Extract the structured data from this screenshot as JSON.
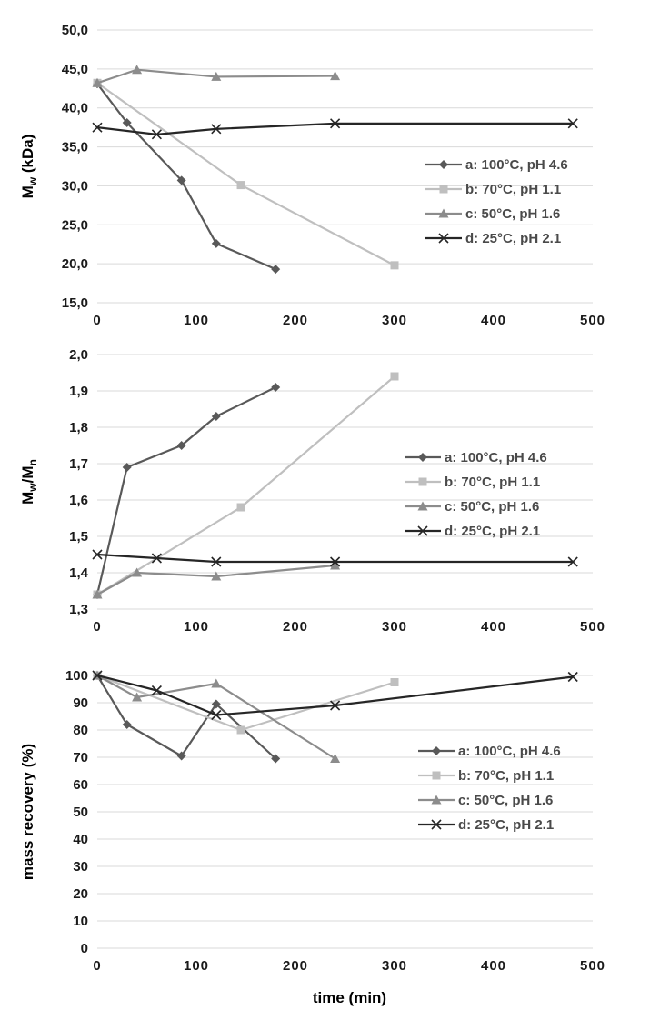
{
  "chart_data": [
    {
      "type": "line",
      "title": "",
      "xlabel": "",
      "ylabel_main": "M",
      "ylabel_sub": "w",
      "ylabel_tail": " (kDa)",
      "xlim": [
        0,
        500
      ],
      "ylim": [
        15,
        50
      ],
      "xticks": [
        0,
        100,
        200,
        300,
        400,
        500
      ],
      "xtick_labels": [
        "0",
        "100",
        "200",
        "300",
        "400",
        "500"
      ],
      "yticks": [
        15,
        20,
        25,
        30,
        35,
        40,
        45,
        50
      ],
      "ytick_labels": [
        "15,0",
        "20,0",
        "25,0",
        "30,0",
        "35,0",
        "40,0",
        "45,0",
        "50,0"
      ],
      "grid": true,
      "legend_position": "right",
      "series": [
        {
          "name": "a: 100°C, pH 4.6",
          "color": "#595959",
          "marker": "diamond",
          "x": [
            0,
            30,
            85,
            120,
            180
          ],
          "y": [
            43.1,
            38.1,
            30.7,
            22.6,
            19.3
          ]
        },
        {
          "name": "b: 70°C, pH 1.1",
          "color": "#bfbfbf",
          "marker": "square",
          "x": [
            0,
            145,
            300
          ],
          "y": [
            43.2,
            30.1,
            19.8
          ]
        },
        {
          "name": "c: 50°C, pH 1.6",
          "color": "#8c8c8c",
          "marker": "triangle",
          "x": [
            0,
            40,
            120,
            240
          ],
          "y": [
            43.2,
            44.9,
            44.0,
            44.1
          ]
        },
        {
          "name": "d: 25°C, pH 2.1",
          "color": "#262626",
          "marker": "x",
          "x": [
            0,
            60,
            120,
            240,
            480
          ],
          "y": [
            37.5,
            36.6,
            37.3,
            38.0,
            38.0
          ]
        }
      ]
    },
    {
      "type": "line",
      "title": "",
      "xlabel": "",
      "ylabel_main": "M",
      "ylabel_sub": "w",
      "ylabel_tail": "/M",
      "ylabel_sub2": "n",
      "xlim": [
        0,
        500
      ],
      "ylim": [
        1.3,
        2.0
      ],
      "xticks": [
        0,
        100,
        200,
        300,
        400,
        500
      ],
      "xtick_labels": [
        "0",
        "100",
        "200",
        "300",
        "400",
        "500"
      ],
      "yticks": [
        1.3,
        1.4,
        1.5,
        1.6,
        1.7,
        1.8,
        1.9,
        2.0
      ],
      "ytick_labels": [
        "1,3",
        "1,4",
        "1,5",
        "1,6",
        "1,7",
        "1,8",
        "1,9",
        "2,0"
      ],
      "grid": true,
      "legend_position": "right",
      "series": [
        {
          "name": "a: 100°C, pH 4.6",
          "color": "#595959",
          "marker": "diamond",
          "x": [
            0,
            30,
            85,
            120,
            180
          ],
          "y": [
            1.34,
            1.69,
            1.75,
            1.83,
            1.91
          ]
        },
        {
          "name": "b: 70°C, pH 1.1",
          "color": "#bfbfbf",
          "marker": "square",
          "x": [
            0,
            145,
            300
          ],
          "y": [
            1.34,
            1.58,
            1.94
          ]
        },
        {
          "name": "c: 50°C, pH 1.6",
          "color": "#8c8c8c",
          "marker": "triangle",
          "x": [
            0,
            40,
            120,
            240
          ],
          "y": [
            1.34,
            1.4,
            1.39,
            1.42
          ]
        },
        {
          "name": "d: 25°C, pH 2.1",
          "color": "#262626",
          "marker": "x",
          "x": [
            0,
            60,
            120,
            240,
            480
          ],
          "y": [
            1.45,
            1.44,
            1.43,
            1.43,
            1.43
          ]
        }
      ]
    },
    {
      "type": "line",
      "title": "",
      "xlabel": "time (min)",
      "ylabel_main": "mass recovery (%)",
      "xlim": [
        0,
        500
      ],
      "ylim": [
        0,
        100
      ],
      "xticks": [
        0,
        100,
        200,
        300,
        400,
        500
      ],
      "xtick_labels": [
        "0",
        "100",
        "200",
        "300",
        "400",
        "500"
      ],
      "yticks": [
        0,
        10,
        20,
        30,
        40,
        50,
        60,
        70,
        80,
        90,
        100
      ],
      "ytick_labels": [
        "0",
        "10",
        "20",
        "30",
        "40",
        "50",
        "60",
        "70",
        "80",
        "90",
        "100"
      ],
      "grid": true,
      "legend_position": "right",
      "series": [
        {
          "name": "a: 100°C, pH 4.6",
          "color": "#595959",
          "marker": "diamond",
          "x": [
            0,
            30,
            85,
            120,
            180
          ],
          "y": [
            100,
            82,
            70.5,
            89.5,
            69.5
          ]
        },
        {
          "name": "b: 70°C, pH 1.1",
          "color": "#bfbfbf",
          "marker": "square",
          "x": [
            0,
            145,
            300
          ],
          "y": [
            100,
            80,
            97.5
          ]
        },
        {
          "name": "c: 50°C, pH 1.6",
          "color": "#8c8c8c",
          "marker": "triangle",
          "x": [
            0,
            40,
            120,
            240
          ],
          "y": [
            100,
            92,
            97,
            69.5
          ]
        },
        {
          "name": "d: 25°C, pH 2.1",
          "color": "#262626",
          "marker": "x",
          "x": [
            0,
            60,
            120,
            240,
            480
          ],
          "y": [
            100,
            94.5,
            85.5,
            89,
            99.5
          ]
        }
      ]
    }
  ]
}
